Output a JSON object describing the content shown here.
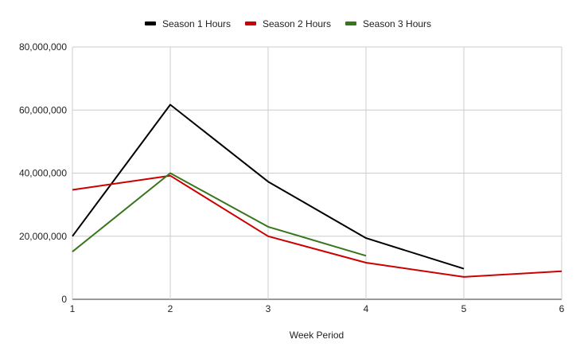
{
  "chart_data": {
    "type": "line",
    "title": "",
    "xlabel": "Week Period",
    "ylabel": "",
    "x": [
      1,
      2,
      3,
      4,
      5,
      6
    ],
    "xlim": [
      1,
      6
    ],
    "ylim": [
      0,
      80000000
    ],
    "y_ticks": [
      0,
      20000000,
      40000000,
      60000000,
      80000000
    ],
    "y_tick_labels": [
      "0",
      "20,000,000",
      "40,000,000",
      "60,000,000",
      "80,000,000"
    ],
    "x_tick_labels": [
      "1",
      "2",
      "3",
      "4",
      "5",
      "6"
    ],
    "grid": true,
    "legend_position": "top-center",
    "series": [
      {
        "name": "Season 1 Hours",
        "color": "#000000",
        "values": [
          20000000,
          61700000,
          37300000,
          19400000,
          9700000,
          null
        ]
      },
      {
        "name": "Season 2 Hours",
        "color": "#cc0000",
        "values": [
          34700000,
          39200000,
          20000000,
          11600000,
          7100000,
          8900000
        ]
      },
      {
        "name": "Season 3 Hours",
        "color": "#38761d",
        "values": [
          15100000,
          40000000,
          23000000,
          13800000,
          null,
          null
        ]
      }
    ]
  }
}
